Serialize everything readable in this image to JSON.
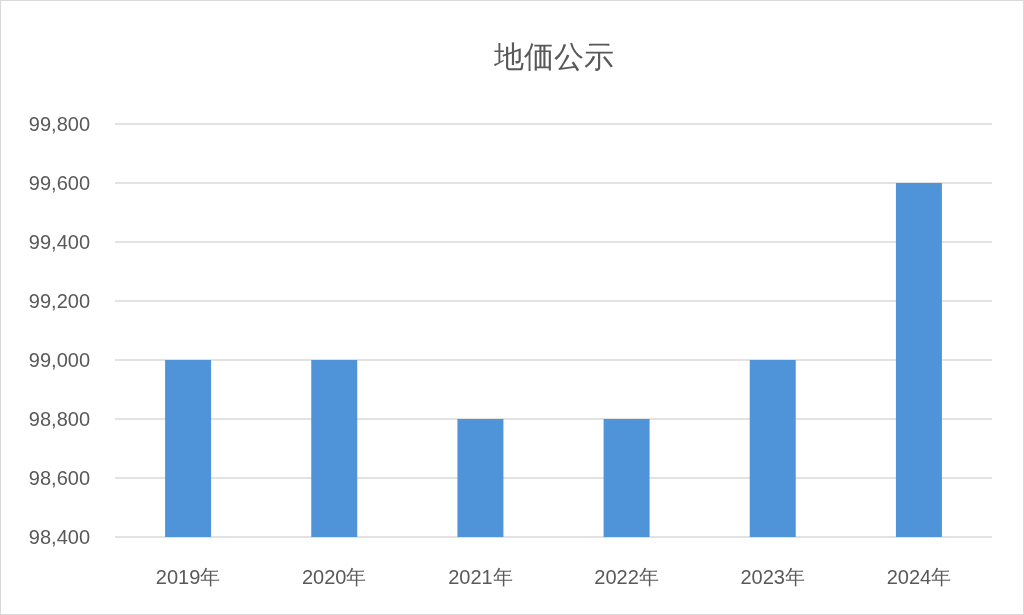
{
  "chart_data": {
    "type": "bar",
    "title": "地価公示",
    "categories": [
      "2019年",
      "2020年",
      "2021年",
      "2022年",
      "2023年",
      "2024年"
    ],
    "values": [
      99000,
      99000,
      98800,
      98800,
      99000,
      99600
    ],
    "color": "#4f94d8",
    "ylim": [
      98400,
      99800
    ],
    "yticks": [
      {
        "value": 98400,
        "label": "98,400"
      },
      {
        "value": 98600,
        "label": "98,600"
      },
      {
        "value": 98800,
        "label": "98,800"
      },
      {
        "value": 99000,
        "label": "99,000"
      },
      {
        "value": 99200,
        "label": "99,200"
      },
      {
        "value": 99400,
        "label": "99,400"
      },
      {
        "value": 99600,
        "label": "99,600"
      },
      {
        "value": 99800,
        "label": "99,800"
      }
    ],
    "grid": "y"
  }
}
